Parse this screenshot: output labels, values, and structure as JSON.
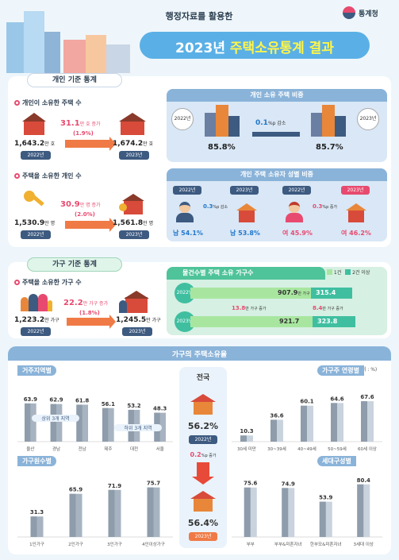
{
  "header": {
    "subtitle": "행정자료를 활용한",
    "title_year": "2023년",
    "title_main": "주택소유통계 결과",
    "agency": "통계청"
  },
  "personal": {
    "section_title": "개인 기준 통계",
    "owned_houses": {
      "title": "개인이 소유한 주택 수",
      "y2022": "1,643.2",
      "y2022_unit": "만 호",
      "change": "31.1",
      "change_unit": "만 호 증가",
      "change_pct": "(1.9%)",
      "y2023": "1,674.2",
      "y2023_unit": "만 호",
      "label2022": "2022년",
      "label2023": "2023년"
    },
    "owners": {
      "title": "주택을 소유한 개인 수",
      "y2022": "1,530.9",
      "y2022_unit": "만 명",
      "change": "30.9",
      "change_unit": "만 명 증가",
      "change_pct": "(2.0%)",
      "y2023": "1,561.8",
      "y2023_unit": "만 명",
      "label2022": "2022년",
      "label2023": "2023년"
    },
    "share": {
      "title": "개인 소유 주택 비중",
      "y2022_label": "2022년",
      "y2023_label": "2023년",
      "y2022_value": "85.8%",
      "y2023_value": "85.7%",
      "change": "0.1",
      "change_unit": "%p 감소",
      "v2022": 85.8,
      "v2023": 85.7
    },
    "gender": {
      "title": "개인 주택 소유자 성별 비중",
      "male_2022_label": "2022년",
      "male_2023_label": "2023년",
      "female_2022_label": "2022년",
      "female_2023_label": "2023년",
      "male_change": "0.3",
      "male_change_unit": "%p 감소",
      "female_change": "0.3",
      "female_change_unit": "%p 증가",
      "male_2022": "남 54.1%",
      "male_2023": "남 53.8%",
      "female_2022": "여 45.9%",
      "female_2023": "여 46.2%"
    }
  },
  "household": {
    "section_title": "가구 기준 통계",
    "owners": {
      "title": "주택을 소유한 가구 수",
      "y2022": "1,223.2",
      "y2022_unit": "만 가구",
      "change": "22.2",
      "change_unit": "만 가구 증가",
      "change_pct": "(1.8%)",
      "y2023": "1,245.5",
      "y2023_unit": "만 가구",
      "label2022": "2022년",
      "label2023": "2023년"
    },
    "count_by_units": {
      "title": "물건수별 주택 소유 가구수",
      "legend_1": "1건",
      "legend_2": "2건 이상",
      "y2022_label": "2022년",
      "y2023_label": "2023년",
      "y2022_one": "907.9",
      "y2022_two": "315.4",
      "y2023_one": "921.7",
      "y2023_two": "323.8",
      "unit": "만 가구",
      "delta_one": "13.8",
      "delta_one_unit": "만 가구 증가",
      "delta_two": "8.4",
      "delta_two_unit": "만 가구 증가"
    }
  },
  "rate": {
    "title": "가구의 주택소유율",
    "unit": "(단위 : %)",
    "national": {
      "label": "전국",
      "y2022_value": "56.2%",
      "y2022_label": "2022년",
      "change": "0.2",
      "change_unit": "%p 증가",
      "y2023_value": "56.4%",
      "y2023_label": "2023년"
    },
    "region": {
      "tag": "거주지역별",
      "top_label": "상위 3개 지역",
      "bottom_label": "하위 3개 지역"
    },
    "age": {
      "tag": "가구주 연령별"
    },
    "size": {
      "tag": "가구원수별"
    },
    "gen": {
      "tag": "세대구성별"
    }
  },
  "chart_data": [
    {
      "type": "bar",
      "title": "거주지역별",
      "categories": [
        "울산",
        "경남",
        "전남",
        "제주",
        "대전",
        "서울"
      ],
      "values": [
        63.9,
        62.9,
        61.8,
        56.1,
        53.2,
        48.3
      ],
      "labels": [
        "63.9",
        "62.9",
        "61.8",
        "56.1",
        "53.2",
        "48.3"
      ]
    },
    {
      "type": "bar",
      "title": "가구주 연령별",
      "categories": [
        "30세 미만",
        "30~39세",
        "40~49세",
        "50~59세",
        "60세 이상"
      ],
      "values": [
        10.3,
        36.6,
        60.1,
        64.6,
        67.6
      ],
      "labels": [
        "10.3",
        "36.6",
        "60.1",
        "64.6",
        "67.6"
      ]
    },
    {
      "type": "bar",
      "title": "가구원수별",
      "categories": [
        "1인가구",
        "2인가구",
        "3인가구",
        "4인이상가구"
      ],
      "values": [
        31.3,
        65.9,
        71.9,
        75.7
      ],
      "labels": [
        "31.3",
        "65.9",
        "71.9",
        "75.7"
      ]
    },
    {
      "type": "bar",
      "title": "세대구성별",
      "categories": [
        "부부",
        "부부&미혼자녀",
        "한부모&미혼자녀",
        "3세대 이상"
      ],
      "values": [
        75.6,
        74.9,
        53.9,
        80.4
      ],
      "labels": [
        "75.6",
        "74.9",
        "53.9",
        "80.4"
      ]
    }
  ],
  "colors": {
    "navy": "#3d5a80",
    "pink": "#e84a6f",
    "orange": "#f07a46",
    "teal": "#3fbfa0",
    "green": "#6cc04a"
  }
}
